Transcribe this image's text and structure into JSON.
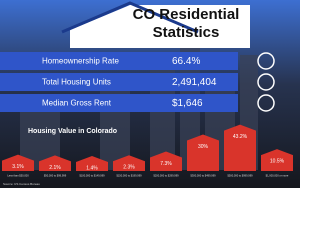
{
  "header": {
    "title_line1": "CO Residential",
    "title_line2": "Statistics"
  },
  "stats": [
    {
      "label": "Homeownership Rate",
      "value": "66.4%"
    },
    {
      "label": "Total Housing Units",
      "value": "2,491,404"
    },
    {
      "label": "Median Gross Rent",
      "value": "$1,646"
    }
  ],
  "chart_data": {
    "type": "bar",
    "title": "Housing Value in Colorado",
    "categories": [
      "Less than $50,000",
      "$50,000 to $99,999",
      "$100,000 to $149,999",
      "$150,000 to $199,999",
      "$200,000 to $299,999",
      "$300,000 to $499,999",
      "$500,000 to $999,999",
      "$1,000,000 or more"
    ],
    "values": [
      3.1,
      2.1,
      1.4,
      2.3,
      7.3,
      30,
      43.2,
      10.5
    ],
    "value_labels": [
      "3.1%",
      "2.1%",
      "1.4%",
      "2.3%",
      "7.3%",
      "30%",
      "43.2%",
      "10.5%"
    ],
    "color": "#d9342b"
  },
  "source": "Source: US Census Bureau"
}
